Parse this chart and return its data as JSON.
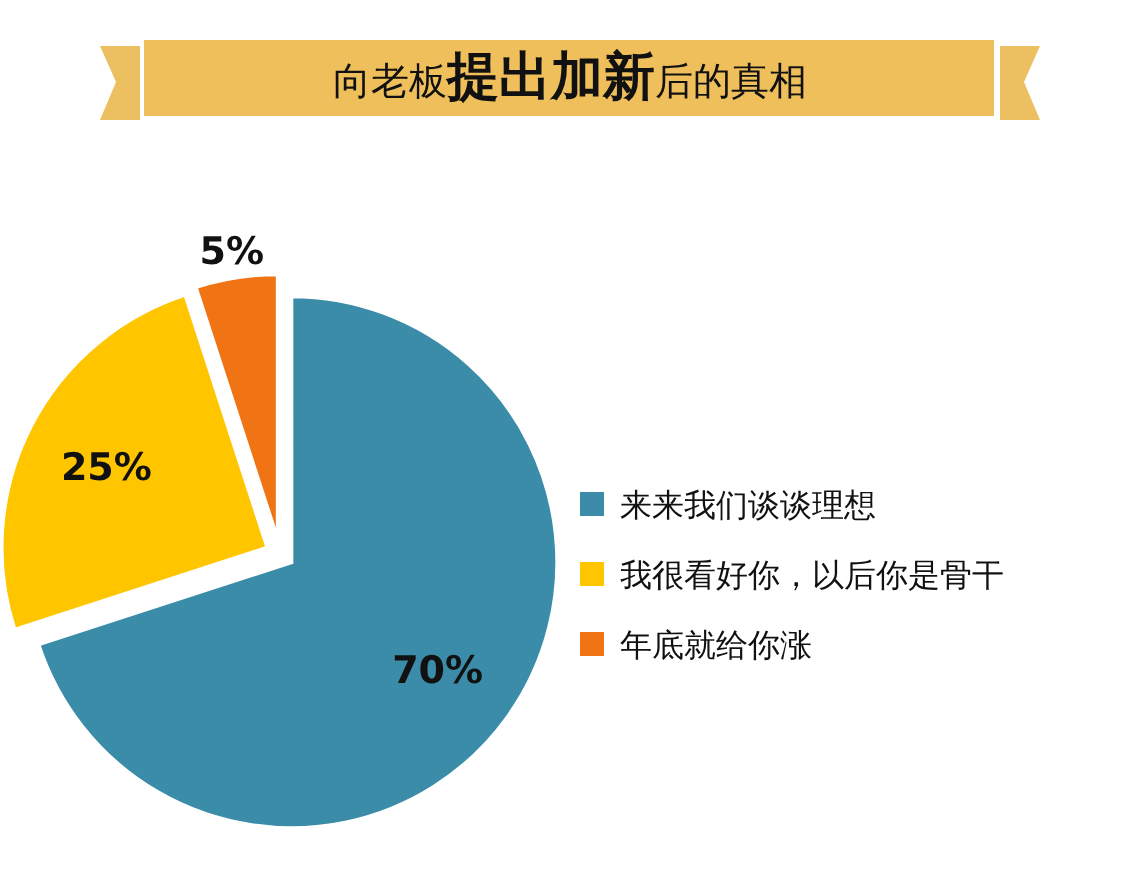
{
  "chart_data": {
    "type": "pie",
    "title": "向老板**提出加新**后的真相",
    "categories": [
      "来来我们谈谈理想",
      "我很看好你，以后你是骨干",
      "年底就给你涨"
    ],
    "values": [
      70,
      25,
      5
    ],
    "colors": [
      "#3a8ca8",
      "#ffc600",
      "#f07314"
    ],
    "value_labels": [
      "70%",
      "25%",
      "5%"
    ],
    "legend": "right"
  }
}
